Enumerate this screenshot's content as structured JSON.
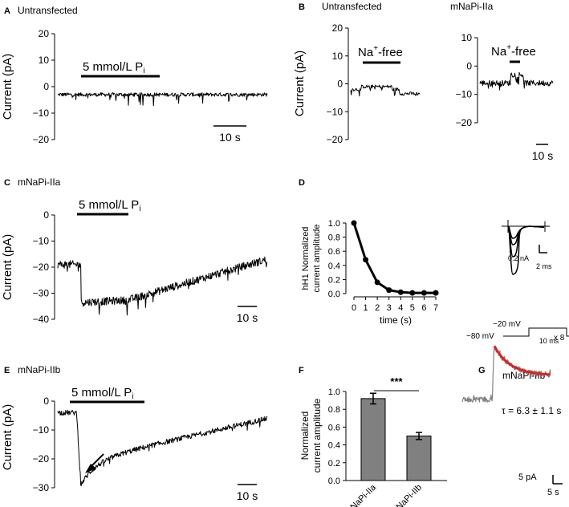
{
  "panels": {
    "A": {
      "letter": "A",
      "title": "Untransfected"
    },
    "B": {
      "letter": "B",
      "title_left": "Untransfected",
      "title_right": "mNaPi-IIa"
    },
    "C": {
      "letter": "C",
      "title": "mNaPi-IIa"
    },
    "D": {
      "letter": "D"
    },
    "E": {
      "letter": "E",
      "title": "mNaPi-IIb"
    },
    "F": {
      "letter": "F"
    },
    "G": {
      "letter": "G",
      "title": "mNaPi-IIb"
    }
  },
  "labels": {
    "current_pa": "Current (pA)",
    "pi_bar": "5 mmol/L P",
    "pi_sub": "i",
    "na_free_main": "Na",
    "na_free_sup": "+",
    "na_free_rest": "-free",
    "scale_10s": "10 s",
    "d_ylabel_1": "hH1 Normalized",
    "d_ylabel_2": "current amplitude",
    "d_xlabel": "time (s)",
    "d_scale_na": "0.2 nA",
    "d_scale_ms": "2 ms",
    "d_v_top": "−20 mV",
    "d_v_bottom": "−80 mV",
    "d_v_duration": "10 ms",
    "d_v_repeat": "x 8",
    "f_ylabel_1": "Normalized",
    "f_ylabel_2": "current amplitude",
    "f_sig": "***",
    "g_tau": "τ = 6.3 ± 1.1 s",
    "g_scale_pa": "5 pA",
    "g_scale_s": "5 s"
  },
  "colors": {
    "trace": "#000000",
    "bar_fill": "#808080",
    "raw_trace_g": "#808080",
    "fit_g": "#dd2222"
  },
  "chart_data": [
    {
      "id": "A",
      "type": "line",
      "ylabel": "Current (pA)",
      "ylim": [
        -20,
        20
      ],
      "yticks": [
        20,
        10,
        0,
        -10,
        -20
      ],
      "baseline_pa": -3
    },
    {
      "id": "B-untransfected",
      "type": "line",
      "ylabel": "Current (pA)",
      "ylim": [
        -20,
        20
      ],
      "yticks": [
        20,
        10,
        0,
        -10,
        -20
      ],
      "baseline_pa": -2,
      "during_na_free_pa": -1
    },
    {
      "id": "B-mNaPi-IIa",
      "type": "line",
      "ylim": [
        -20,
        10
      ],
      "yticks": [
        10,
        0,
        -10,
        -20
      ],
      "baseline_pa": -6,
      "during_na_free_pa": -3
    },
    {
      "id": "C",
      "type": "line",
      "ylabel": "Current (pA)",
      "ylim": [
        -40,
        0
      ],
      "yticks": [
        0,
        -10,
        -20,
        -30,
        -40
      ],
      "baseline_pa": -19,
      "min_pa": -34,
      "end_pa": -17
    },
    {
      "id": "D",
      "type": "line",
      "ylabel": "hH1 Normalized current amplitude",
      "xlabel": "time (s)",
      "ylim": [
        0,
        1.0
      ],
      "yticks": [
        "0.0",
        "0.2",
        "0.4",
        "0.6",
        "0.8",
        "1.0"
      ],
      "xticks": [
        "0",
        "1",
        "2",
        "3",
        "4",
        "5",
        "6",
        "7"
      ],
      "x": [
        0,
        1,
        2,
        3,
        4,
        5,
        6,
        7
      ],
      "y": [
        1.0,
        0.48,
        0.16,
        0.05,
        0.02,
        0.01,
        0.01,
        0.01
      ]
    },
    {
      "id": "E",
      "type": "line",
      "ylabel": "Current (pA)",
      "ylim": [
        -30,
        0
      ],
      "yticks": [
        0,
        -10,
        -20,
        -30
      ],
      "baseline_pa": -4,
      "min_pa": -29,
      "end_pa": -6
    },
    {
      "id": "F",
      "type": "bar",
      "ylabel": "Normalized current amplitude",
      "ylim": [
        0,
        1.0
      ],
      "yticks": [
        "0.0",
        "0.2",
        "0.4",
        "0.6",
        "0.8",
        "1.0"
      ],
      "categories": [
        "mNaPi-IIa",
        "mNaPi-IIb"
      ],
      "values": [
        0.92,
        0.5
      ],
      "errors": [
        0.06,
        0.04
      ],
      "annotation": "***"
    },
    {
      "id": "G",
      "type": "line",
      "tau_s": 6.3,
      "tau_err_s": 1.1
    }
  ]
}
